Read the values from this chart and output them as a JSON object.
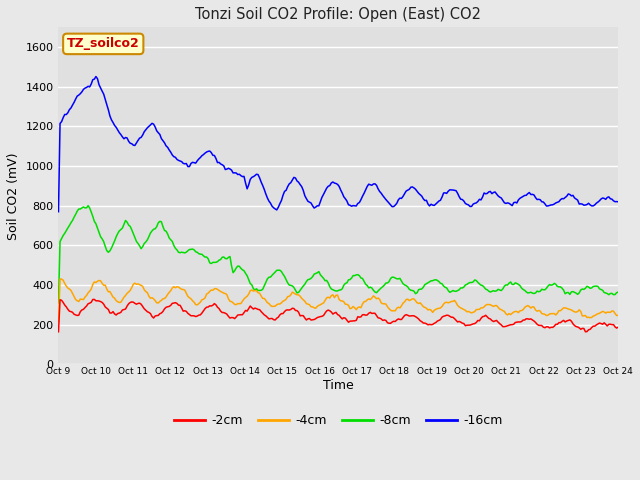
{
  "title": "Tonzi Soil CO2 Profile: Open (East) CO2",
  "xlabel": "Time",
  "ylabel": "Soil CO2 (mV)",
  "watermark_text": "TZ_soilco2",
  "xlim": [
    0,
    15
  ],
  "ylim": [
    0,
    1700
  ],
  "yticks": [
    0,
    200,
    400,
    600,
    800,
    1000,
    1200,
    1400,
    1600
  ],
  "xtick_labels": [
    "Oct 9",
    "Oct 10",
    "Oct 11",
    "Oct 12",
    "Oct 13",
    "Oct 14",
    "Oct 15",
    "Oct 16",
    "Oct 17",
    "Oct 18",
    "Oct 19",
    "Oct 20",
    "Oct 21",
    "Oct 22",
    "Oct 23",
    "Oct 24"
  ],
  "fig_bg_color": "#e8e8e8",
  "plot_bg_color": "#e0e0e0",
  "grid_color": "#ffffff",
  "colors": {
    "neg2cm": "#ff0000",
    "neg4cm": "#ffa500",
    "neg8cm": "#00dd00",
    "neg16cm": "#0000ff"
  },
  "legend_labels": [
    "-2cm",
    "-4cm",
    "-8cm",
    "-16cm"
  ],
  "legend_colors": [
    "#ff0000",
    "#ffa500",
    "#00dd00",
    "#0000ff"
  ],
  "watermark_bg": "#ffffcc",
  "watermark_fg": "#cc0000",
  "watermark_edge": "#cc8800"
}
